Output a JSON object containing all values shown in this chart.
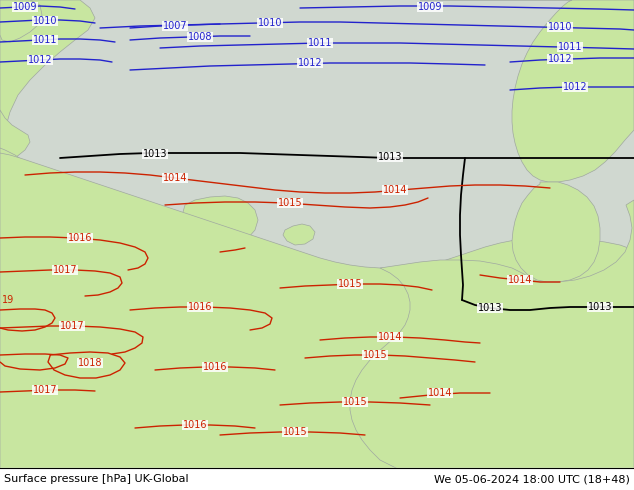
{
  "title_left": "Surface pressure [hPa] UK-Global",
  "title_right": "We 05-06-2024 18:00 UTC (18+48)",
  "land_color": "#c8e6a0",
  "sea_color": "#d0d8d0",
  "border_color": "#a0a8a0",
  "blue": "#2222cc",
  "red": "#cc2200",
  "black": "#000000",
  "white": "#ffffff",
  "label_fs": 7,
  "title_fs": 8,
  "figsize": [
    6.34,
    4.9
  ],
  "dpi": 100
}
